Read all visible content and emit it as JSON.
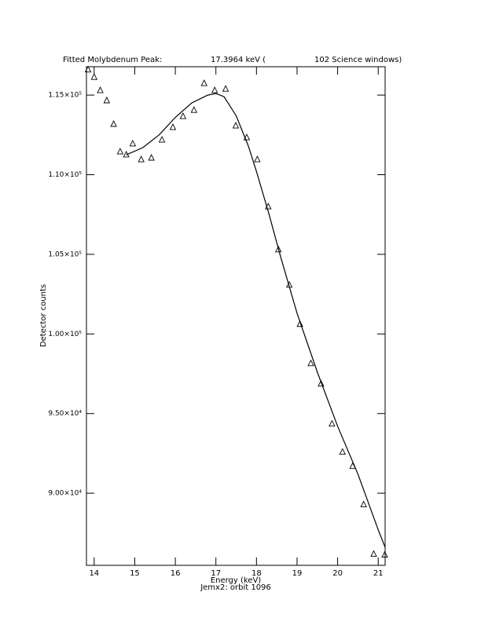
{
  "chart_data": {
    "type": "scatter",
    "title": [
      "Fitted Molybdenum Peak:",
      "17.3964 keV (",
      "102 Science windows)"
    ],
    "x_label": "Energy (keV)",
    "subtitle": "Jemx2: orbit 1096",
    "y_label": "Detector counts",
    "xlim": [
      13.81,
      21.17
    ],
    "ylim": [
      85470,
      116780
    ],
    "xticks": [
      14,
      15,
      16,
      17,
      18,
      19,
      20,
      21
    ],
    "yticks": [
      {
        "value": 90000,
        "label": "9.00×10⁴"
      },
      {
        "value": 95000,
        "label": "9.50×10⁴"
      },
      {
        "value": 100000,
        "label": "1.00×10⁵"
      },
      {
        "value": 105000,
        "label": "1.05×10⁵"
      },
      {
        "value": 110000,
        "label": "1.10×10⁵"
      },
      {
        "value": 115000,
        "label": "1.15×10⁵"
      }
    ],
    "color": "#000000",
    "points": {
      "x": [
        13.85,
        14.0,
        14.15,
        14.31,
        14.48,
        14.64,
        14.79,
        14.95,
        15.16,
        15.41,
        15.67,
        15.94,
        16.19,
        16.46,
        16.71,
        16.97,
        17.24,
        17.49,
        17.76,
        18.02,
        18.29,
        18.54,
        18.81,
        19.07,
        19.34,
        19.59,
        19.86,
        20.12,
        20.37,
        20.64,
        20.89,
        21.16
      ],
      "values": [
        116600,
        116130,
        115300,
        114660,
        113180,
        111450,
        111260,
        111950,
        110960,
        111060,
        112190,
        112980,
        113670,
        114060,
        115740,
        115300,
        115390,
        113080,
        112340,
        110960,
        108000,
        105300,
        103080,
        100620,
        98150,
        96870,
        94360,
        92590,
        91700,
        89290,
        86180,
        86130
      ]
    },
    "fit": {
      "x": [
        14.79,
        15.2,
        15.6,
        16.0,
        16.4,
        16.8,
        17.0,
        17.2,
        17.5,
        17.8,
        18.0,
        18.3,
        18.6,
        19.0,
        19.5,
        20.0,
        20.5,
        21.0,
        21.17
      ],
      "values": [
        111250,
        111700,
        112500,
        113600,
        114500,
        115000,
        115100,
        114900,
        113700,
        111800,
        110200,
        107600,
        104800,
        101300,
        97600,
        94200,
        91200,
        87700,
        86600
      ]
    }
  }
}
